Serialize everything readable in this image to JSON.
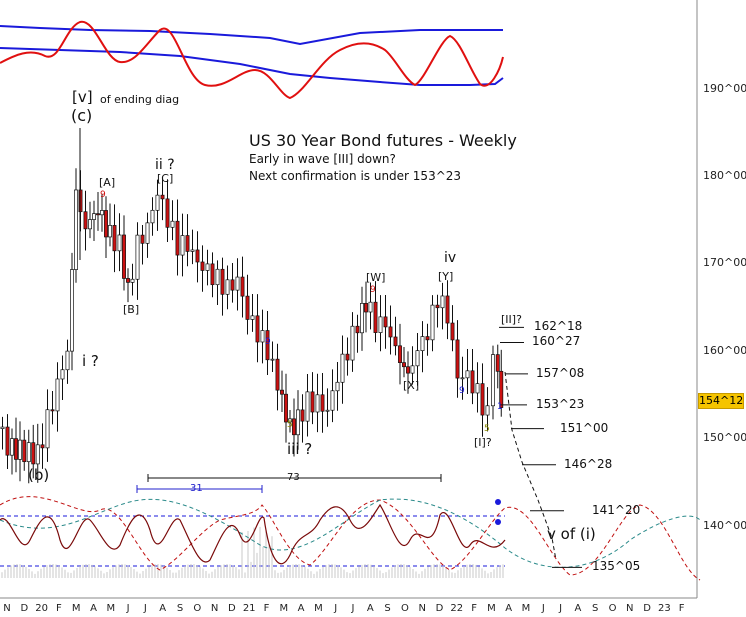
{
  "title": "US 30 Year Bond futures - Weekly",
  "subtitle1": "Early in wave [III] down?",
  "subtitle2": "Next confirmation is under 153^23",
  "last_price": "154^12",
  "y_ticks": [
    "190^00",
    "180^00",
    "170^00",
    "160^00",
    "150^00",
    "140^00"
  ],
  "x_ticks": [
    "N",
    "D",
    "20",
    "F",
    "M",
    "A",
    "M",
    "J",
    "J",
    "A",
    "S",
    "O",
    "N",
    "D",
    "21",
    "F",
    "M",
    "A",
    "M",
    "J",
    "J",
    "A",
    "S",
    "O",
    "N",
    "D",
    "22",
    "F",
    "M",
    "A",
    "M",
    "J",
    "J",
    "A",
    "S",
    "O",
    "N",
    "D",
    "23",
    "F"
  ],
  "wave_labels": {
    "v_top": "[v]",
    "v_top_note": "of ending diag",
    "c_top": "(c)",
    "A": "[A]",
    "C": "[C]",
    "ii": "ii ?",
    "B": "[B]",
    "i": "i ?",
    "b": "(b)",
    "W": "[W]",
    "Y": "[Y]",
    "iv": "iv",
    "X": "[X]",
    "iii": "iii ?",
    "I": "[I]?",
    "II": "[II]?",
    "v_of_i": "v of (i)"
  },
  "counts": {
    "A9": "9",
    "W9": "9",
    "b9": "9",
    "X9": "9",
    "iii5": "5",
    "I5": "5",
    "I1": "1"
  },
  "levels": [
    {
      "label": "162^18",
      "price": 162.56
    },
    {
      "label": "160^27",
      "price": 160.84
    },
    {
      "label": "157^08",
      "price": 157.25
    },
    {
      "label": "153^23",
      "price": 153.72
    },
    {
      "label": "151^00",
      "price": 151.0
    },
    {
      "label": "146^28",
      "price": 146.88
    },
    {
      "label": "141^20",
      "price": 141.63
    },
    {
      "label": "135^05",
      "price": 135.16
    }
  ],
  "cycles": [
    {
      "label": "31",
      "color": "#2222cc"
    },
    {
      "label": "73",
      "color": "#111111"
    }
  ],
  "chart_data": {
    "type": "candlestick",
    "title": "US 30 Year Bond futures - Weekly",
    "y_unit": "price (points^32nds)",
    "ylim": [
      133,
      199
    ],
    "x_range": "Nov 2019 - Feb 2023 (weekly)",
    "last": 154.38,
    "key_pivots": [
      {
        "label": "(b)",
        "price": 148.0
      },
      {
        "label": "(c) / [v]",
        "price": 185.5
      },
      {
        "label": "[A]",
        "price": 176.0
      },
      {
        "label": "[B]",
        "price": 166.5
      },
      {
        "label": "ii ? / [C]",
        "price": 178.0
      },
      {
        "label": "iii ?",
        "price": 150.5
      },
      {
        "label": "[W]",
        "price": 165.5
      },
      {
        "label": "[X]",
        "price": 157.0
      },
      {
        "label": "iv / [Y]",
        "price": 166.0
      },
      {
        "label": "[I]?",
        "price": 152.5
      },
      {
        "label": "[II]?",
        "price": 160.0
      }
    ],
    "projection_targets": [
      "151^00",
      "146^28",
      "141^20",
      "135^05"
    ],
    "indicators": [
      "top oscillator with blue envelope",
      "bottom cycle oscillator with dashed projections"
    ]
  }
}
